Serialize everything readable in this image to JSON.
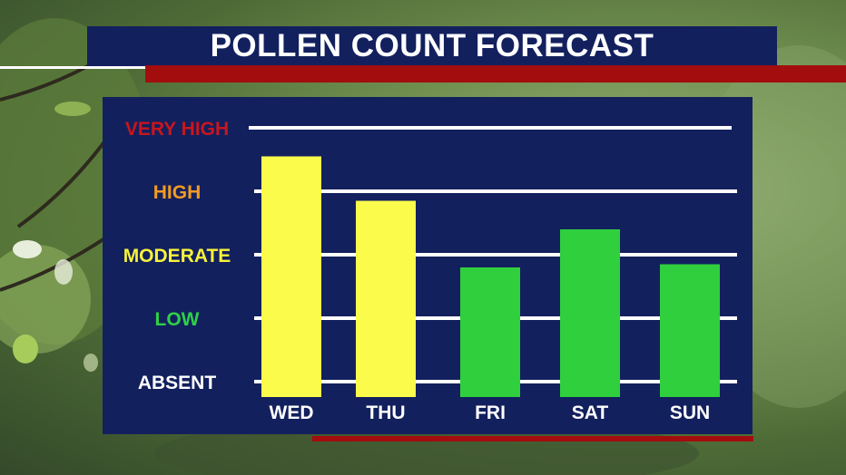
{
  "title": "POLLEN COUNT FORECAST",
  "colors": {
    "panel": "#13205e",
    "accent_red": "#a30d0d",
    "very_high": "#c8161d",
    "high": "#f29b22",
    "moderate": "#f7f23a",
    "low": "#2fd047",
    "absent": "#ffffff",
    "bar_moderate": "#fbfb4c",
    "bar_low": "#2fcf3e"
  },
  "chart_data": {
    "type": "bar",
    "title": "POLLEN COUNT FORECAST",
    "categories": [
      "WED",
      "THU",
      "FRI",
      "SAT",
      "SUN"
    ],
    "values": [
      3.55,
      2.85,
      1.8,
      2.4,
      1.85
    ],
    "y_levels": [
      "ABSENT",
      "LOW",
      "MODERATE",
      "HIGH",
      "VERY HIGH"
    ],
    "y_level_values": [
      0,
      1,
      2,
      3,
      4
    ],
    "bar_colors": [
      "#fbfb4c",
      "#fbfb4c",
      "#2fcf3e",
      "#2fcf3e",
      "#2fcf3e"
    ],
    "ylim": [
      0,
      4
    ],
    "grid": true,
    "xlabel": "",
    "ylabel": ""
  }
}
